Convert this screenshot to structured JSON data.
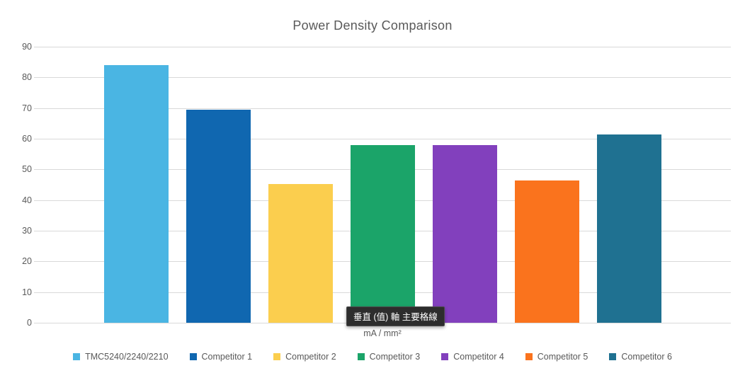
{
  "title": "Power Density Comparison",
  "tooltip": {
    "text": "垂直 (值) 軸 主要格線"
  },
  "chart_data": {
    "type": "bar",
    "title": "Power Density Comparison",
    "xlabel": "mA / mm²",
    "ylabel": "",
    "ylim": [
      0,
      90
    ],
    "yticks": [
      0,
      10,
      20,
      30,
      40,
      50,
      60,
      70,
      80,
      90
    ],
    "grid": true,
    "legend_position": "bottom",
    "categories": [
      "TMC5240/2240/2210",
      "Competitor 1",
      "Competitor 2",
      "Competitor 3",
      "Competitor 4",
      "Competitor 5",
      "Competitor 6"
    ],
    "series": [
      {
        "name": "TMC5240/2240/2210",
        "value": 84,
        "color": "#4ab5e3"
      },
      {
        "name": "Competitor 1",
        "value": 69.5,
        "color": "#1067b0"
      },
      {
        "name": "Competitor 2",
        "value": 45.3,
        "color": "#fbce4e"
      },
      {
        "name": "Competitor 3",
        "value": 58,
        "color": "#1ba469"
      },
      {
        "name": "Competitor 4",
        "value": 58,
        "color": "#8240bd"
      },
      {
        "name": "Competitor 5",
        "value": 46.4,
        "color": "#fa731d"
      },
      {
        "name": "Competitor 6",
        "value": 61.5,
        "color": "#1f7191"
      }
    ],
    "colors": {
      "gridline": "#d9d9d9",
      "text": "#595959",
      "background": "#ffffff",
      "tooltip_bg": "#2d2d2d",
      "tooltip_text": "#ffffff"
    }
  }
}
